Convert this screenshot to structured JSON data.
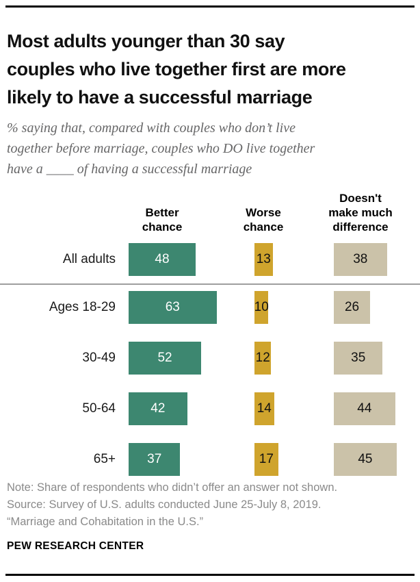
{
  "header": {
    "title_lines": [
      "Most adults younger than 30 say",
      "couples who live together first are more",
      "likely to have a successful marriage"
    ],
    "subtitle_lines": [
      "% saying that, compared with couples who don’t live",
      "together before marriage, couples who DO live together",
      "have a ____ of having a successful marriage"
    ]
  },
  "chart_data": {
    "type": "bar",
    "orientation": "horizontal",
    "unit": "%",
    "value_labels": true,
    "xlim": [
      0,
      100
    ],
    "categories": [
      "All adults",
      "Ages 18-29",
      "30-49",
      "50-64",
      "65+"
    ],
    "series": [
      {
        "name": "Better chance",
        "color": "#3d8770",
        "label_color": "#ffffff",
        "values": [
          48,
          63,
          52,
          42,
          37
        ]
      },
      {
        "name": "Worse chance",
        "color": "#cfa42d",
        "label_color": "#111111",
        "values": [
          13,
          10,
          12,
          14,
          17
        ]
      },
      {
        "name": "Doesn't make much difference",
        "color": "#cbc2a9",
        "label_color": "#111111",
        "values": [
          38,
          26,
          35,
          44,
          45
        ]
      }
    ],
    "group_separator_after": "All adults"
  },
  "footer": {
    "note": "Note: Share of respondents who didn’t offer an answer not shown.",
    "source": "Source: Survey of U.S. adults conducted June 25-July 8, 2019.",
    "report": "“Marriage and Cohabitation in the U.S.”",
    "brand": "PEW RESEARCH CENTER"
  }
}
